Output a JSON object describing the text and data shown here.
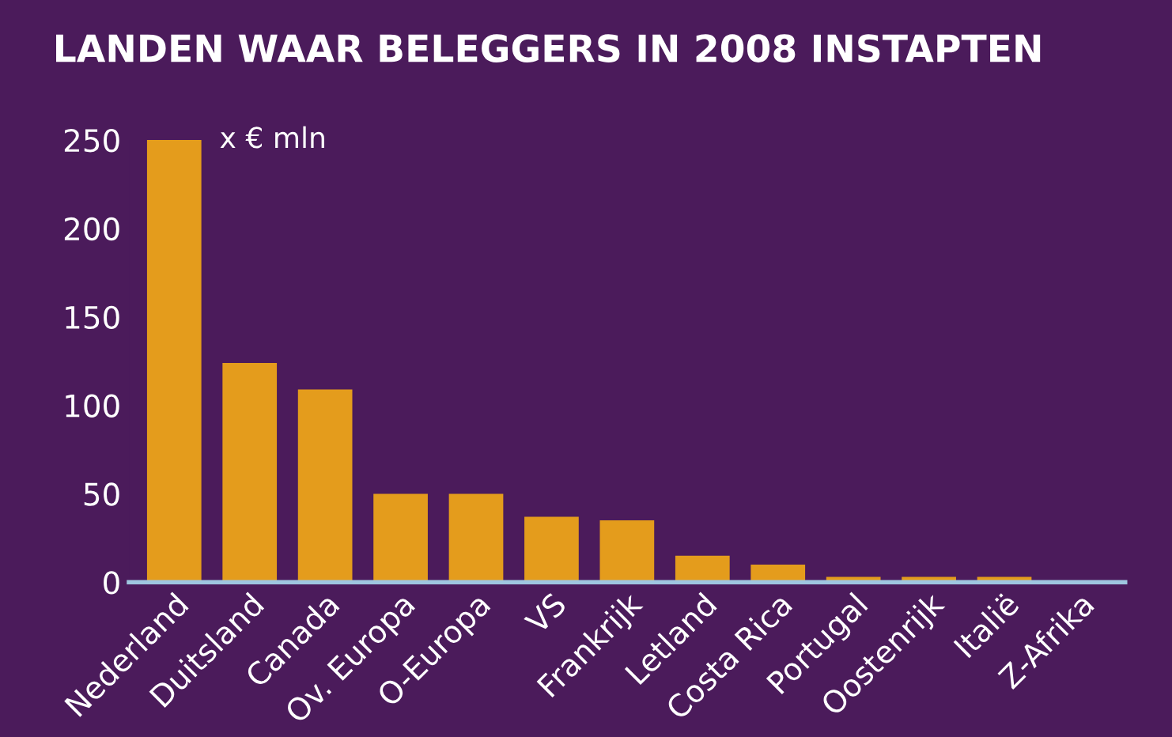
{
  "chart_data": {
    "type": "bar",
    "title": "LANDEN WAAR BELEGGERS IN 2008 INSTAPTEN",
    "ylabel": "x € mln",
    "categories": [
      "Nederland",
      "Duitsland",
      "Canada",
      "Ov. Europa",
      "O-Europa",
      "VS",
      "Frankrijk",
      "Letland",
      "Costa Rica",
      "Portugal",
      "Oostenrijk",
      "Italië",
      "Z-Afrika"
    ],
    "values": [
      250,
      124,
      109,
      50,
      50,
      37,
      35,
      15,
      10,
      3,
      3,
      3,
      null
    ],
    "color": "#e49c1c",
    "ylim": [
      0,
      250
    ],
    "yticks": [
      0,
      50,
      100,
      150,
      200,
      250
    ],
    "grid": false
  }
}
